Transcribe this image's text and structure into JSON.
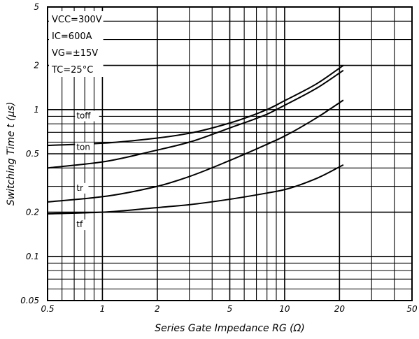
{
  "chart_data": {
    "type": "line",
    "x_scale": "log",
    "y_scale": "log",
    "xlim": [
      0.5,
      50
    ],
    "ylim": [
      0.05,
      5
    ],
    "xlabel": "Series Gate Impedance RG (Ω)",
    "ylabel": "Switching Time t (μs)",
    "x_ticks": [
      {
        "value": 0.5,
        "label": "0.5"
      },
      {
        "value": 1,
        "label": "1"
      },
      {
        "value": 2,
        "label": "2"
      },
      {
        "value": 5,
        "label": "5"
      },
      {
        "value": 10,
        "label": "10"
      },
      {
        "value": 20,
        "label": "20"
      },
      {
        "value": 50,
        "label": "50"
      }
    ],
    "y_ticks": [
      {
        "value": 0.05,
        "label": "0.05"
      },
      {
        "value": 0.1,
        "label": "0.1"
      },
      {
        "value": 0.2,
        "label": "0.2"
      },
      {
        "value": 0.5,
        "label": "0.5"
      },
      {
        "value": 1,
        "label": "1"
      },
      {
        "value": 2,
        "label": "2"
      },
      {
        "value": 5,
        "label": "5"
      }
    ],
    "conditions": [
      "VCC=300V",
      "IC=600A",
      "VG=±15V",
      "TC=25°C"
    ],
    "grid": true,
    "series": [
      {
        "name": "toff",
        "x": [
          0.5,
          1,
          2,
          3,
          5,
          8,
          10,
          15,
          21
        ],
        "y": [
          0.57,
          0.59,
          0.64,
          0.69,
          0.81,
          1.0,
          1.15,
          1.5,
          2.0
        ]
      },
      {
        "name": "ton",
        "x": [
          0.5,
          1,
          2,
          3,
          5,
          8,
          10,
          15,
          21
        ],
        "y": [
          0.4,
          0.44,
          0.53,
          0.6,
          0.75,
          0.93,
          1.07,
          1.4,
          1.85
        ]
      },
      {
        "name": "tr",
        "x": [
          0.5,
          1,
          2,
          3,
          5,
          8,
          10,
          15,
          21
        ],
        "y": [
          0.235,
          0.255,
          0.3,
          0.35,
          0.45,
          0.58,
          0.66,
          0.88,
          1.16
        ]
      },
      {
        "name": "tf",
        "x": [
          0.5,
          1,
          2,
          3,
          5,
          8,
          10,
          15,
          21
        ],
        "y": [
          0.195,
          0.2,
          0.215,
          0.225,
          0.245,
          0.27,
          0.285,
          0.34,
          0.42
        ]
      }
    ]
  }
}
